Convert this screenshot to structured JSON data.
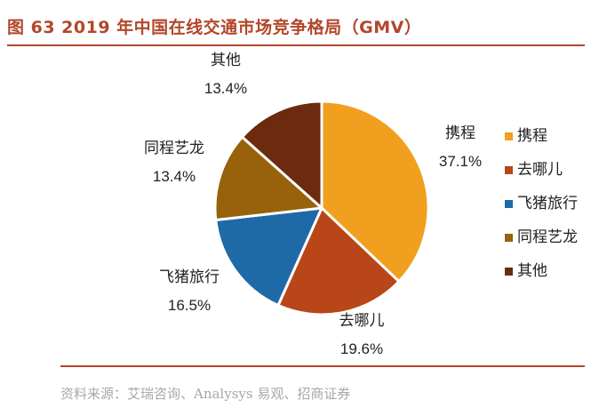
{
  "title": "图 63 2019 年中国在线交通市场竞争格局（GMV）",
  "source": "资料来源：艾瑞咨询、Analysys 易观、招商证券",
  "chart_data": {
    "type": "pie",
    "title": "图 63 2019 年中国在线交通市场竞争格局（GMV）",
    "legend_position": "right",
    "slices": [
      {
        "label": "携程",
        "value": 37.1,
        "value_label": "37.1%",
        "color": "#f0a01e"
      },
      {
        "label": "去哪儿",
        "value": 19.6,
        "value_label": "19.6%",
        "color": "#b84618"
      },
      {
        "label": "飞猪旅行",
        "value": 16.5,
        "value_label": "16.5%",
        "color": "#1e6aa7"
      },
      {
        "label": "同程艺龙",
        "value": 13.4,
        "value_label": "13.4%",
        "color": "#97620a"
      },
      {
        "label": "其他",
        "value": 13.4,
        "value_label": "13.4%",
        "color": "#6c2a0f"
      }
    ]
  }
}
